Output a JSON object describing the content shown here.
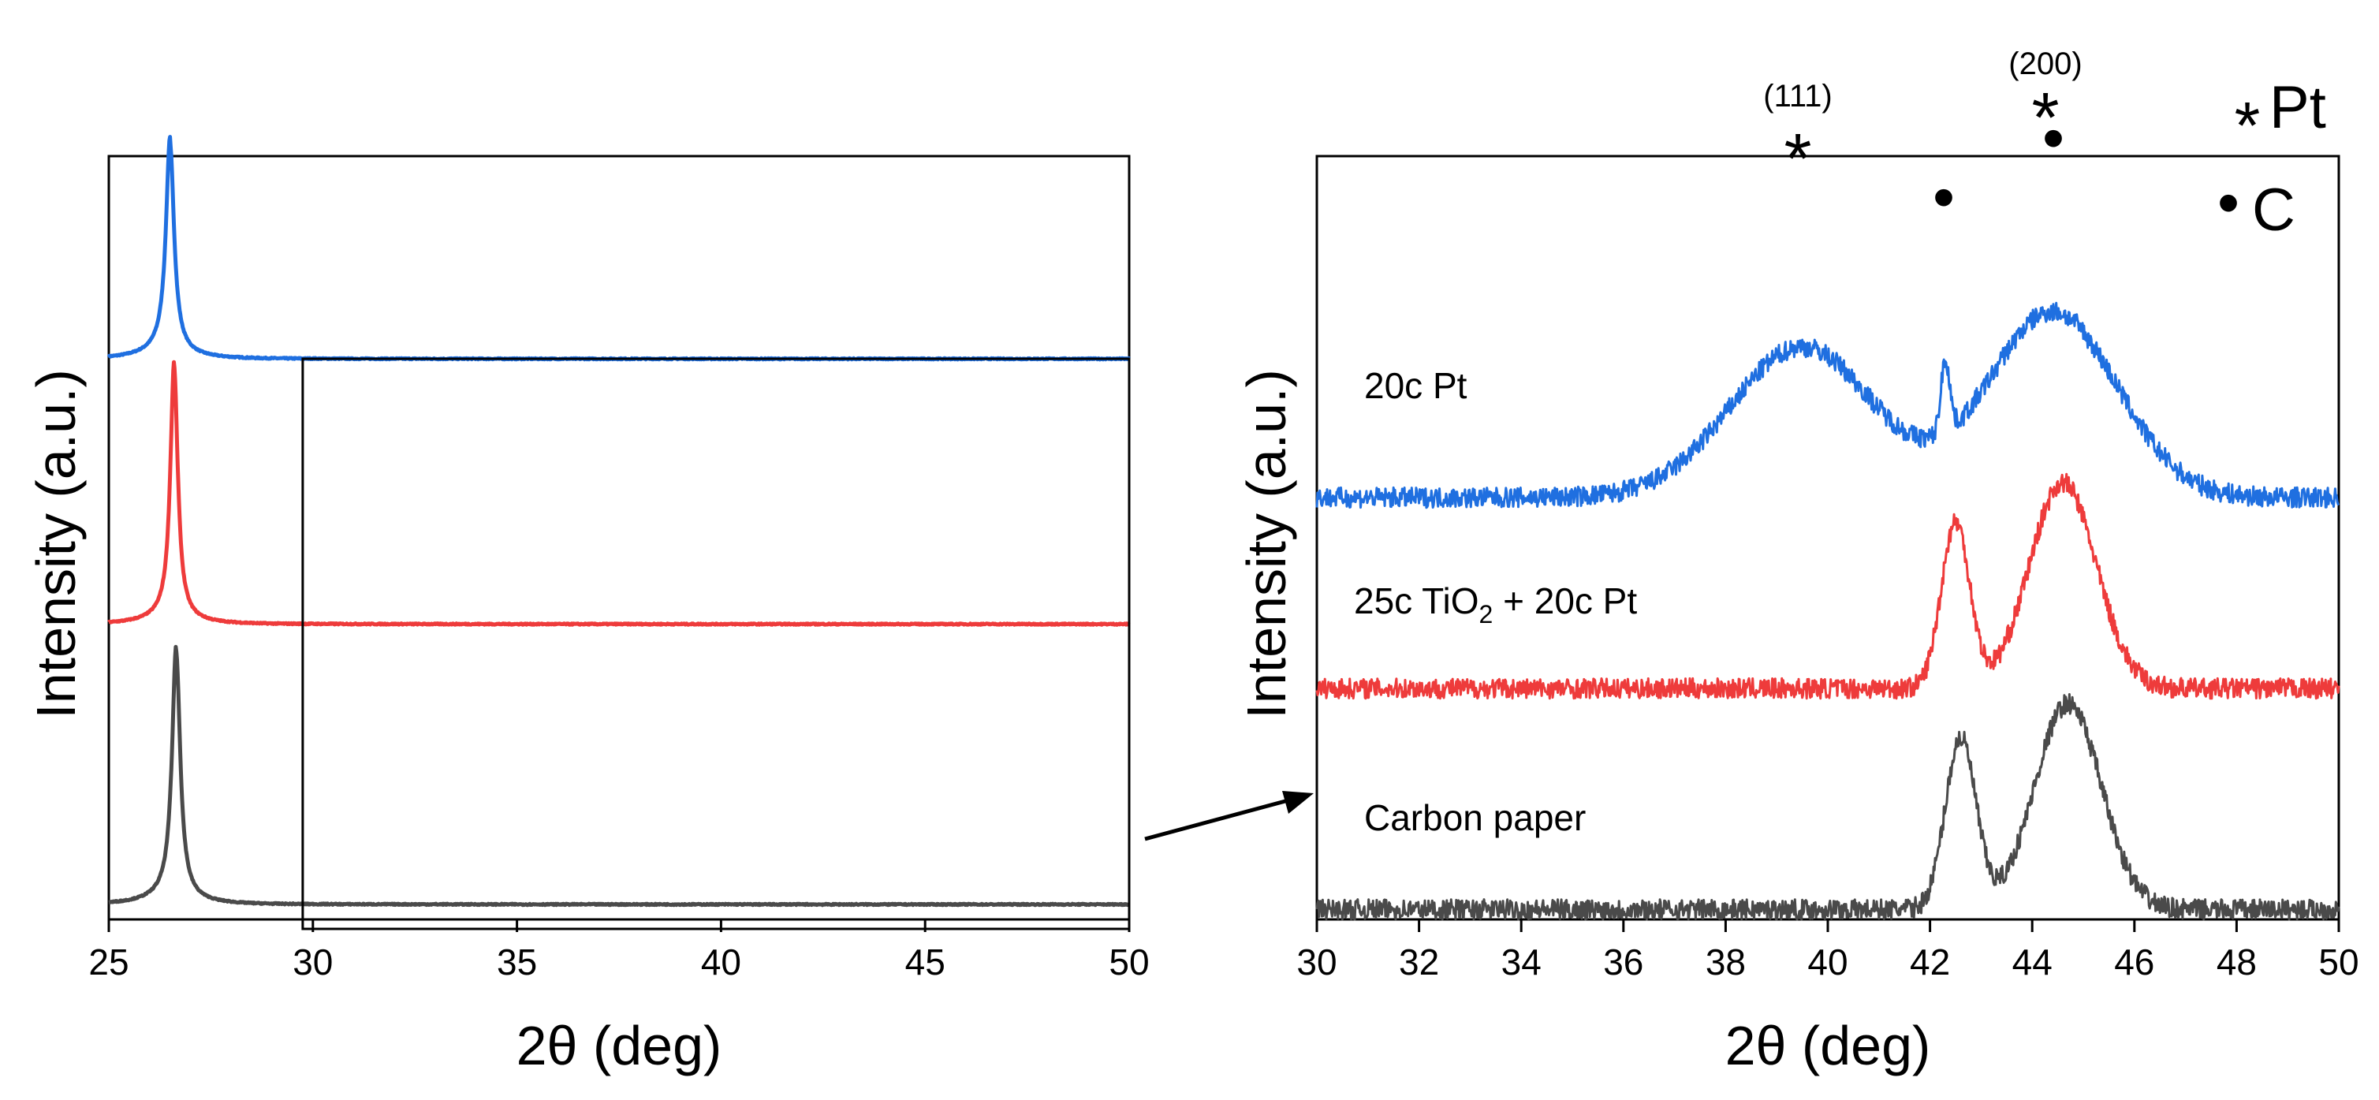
{
  "chart_data": [
    {
      "type": "line",
      "panel": "left",
      "xlabel": "2θ (deg)",
      "ylabel": "Intensity (a.u.)",
      "xlim": [
        25,
        50
      ],
      "xticks": [
        "25",
        "30",
        "35",
        "40",
        "45",
        "50"
      ],
      "ylim": [
        0,
        6.1
      ],
      "inset_box": {
        "x_range": [
          29.75,
          50
        ]
      },
      "series": [
        {
          "name": "20c Pt",
          "color": "#1f6fe0",
          "baseline": 4.48,
          "peak_x": 26.5,
          "peak_height": 1.65,
          "peak_width": 0.12,
          "tail": 0.12
        },
        {
          "name": "25c TiO2 + 20c Pt",
          "color": "#ee3b3b",
          "baseline": 2.36,
          "peak_x": 26.6,
          "peak_height": 2.0,
          "peak_width": 0.11,
          "tail": 0.1
        },
        {
          "name": "Carbon paper",
          "color": "#4a4a4a",
          "baseline": 0.12,
          "peak_x": 26.65,
          "peak_height": 1.95,
          "peak_width": 0.12,
          "tail": 0.12
        }
      ]
    },
    {
      "type": "line",
      "panel": "right",
      "xlabel": "2θ (deg)",
      "ylabel": "Intensity (a.u.)",
      "xlim": [
        30,
        50
      ],
      "xticks": [
        "30",
        "32",
        "34",
        "36",
        "38",
        "40",
        "42",
        "44",
        "46",
        "48",
        "50"
      ],
      "ylim": [
        0,
        7.6
      ],
      "series": [
        {
          "name": "20c Pt",
          "color": "#1f6fe0",
          "baseline": 4.2,
          "noise": 0.2,
          "peaks": [
            {
              "x": 39.5,
              "height": 1.5,
              "width": 1.4
            },
            {
              "x": 42.3,
              "height": 0.72,
              "width": 0.09
            },
            {
              "x": 44.4,
              "height": 1.85,
              "width": 1.25
            }
          ]
        },
        {
          "name": "25c TiO2 + 20c Pt",
          "color": "#ee3b3b",
          "baseline": 2.3,
          "noise": 0.2,
          "peaks": [
            {
              "x": 42.5,
              "height": 1.65,
              "width": 0.28
            },
            {
              "x": 44.6,
              "height": 2.05,
              "width": 0.65
            }
          ]
        },
        {
          "name": "Carbon paper",
          "color": "#4a4a4a",
          "baseline": 0.1,
          "noise": 0.2,
          "peaks": [
            {
              "x": 42.6,
              "height": 1.7,
              "width": 0.3
            },
            {
              "x": 44.7,
              "height": 2.05,
              "width": 0.65
            }
          ]
        }
      ],
      "series_labels": [
        "20c Pt",
        "25c TiO",
        "2",
        " + 20c Pt",
        "Carbon paper"
      ],
      "annotations": [
        {
          "label": "(111)",
          "marker": "*",
          "x": 39.5
        },
        {
          "label": "(200)",
          "marker": "*",
          "x": 44.4
        },
        {
          "marker": "•",
          "x": 42.3
        },
        {
          "marker": "•",
          "x": 44.4
        }
      ],
      "legend": [
        {
          "symbol": "*",
          "label": "Pt"
        },
        {
          "symbol": "•",
          "label": "C"
        }
      ]
    }
  ]
}
